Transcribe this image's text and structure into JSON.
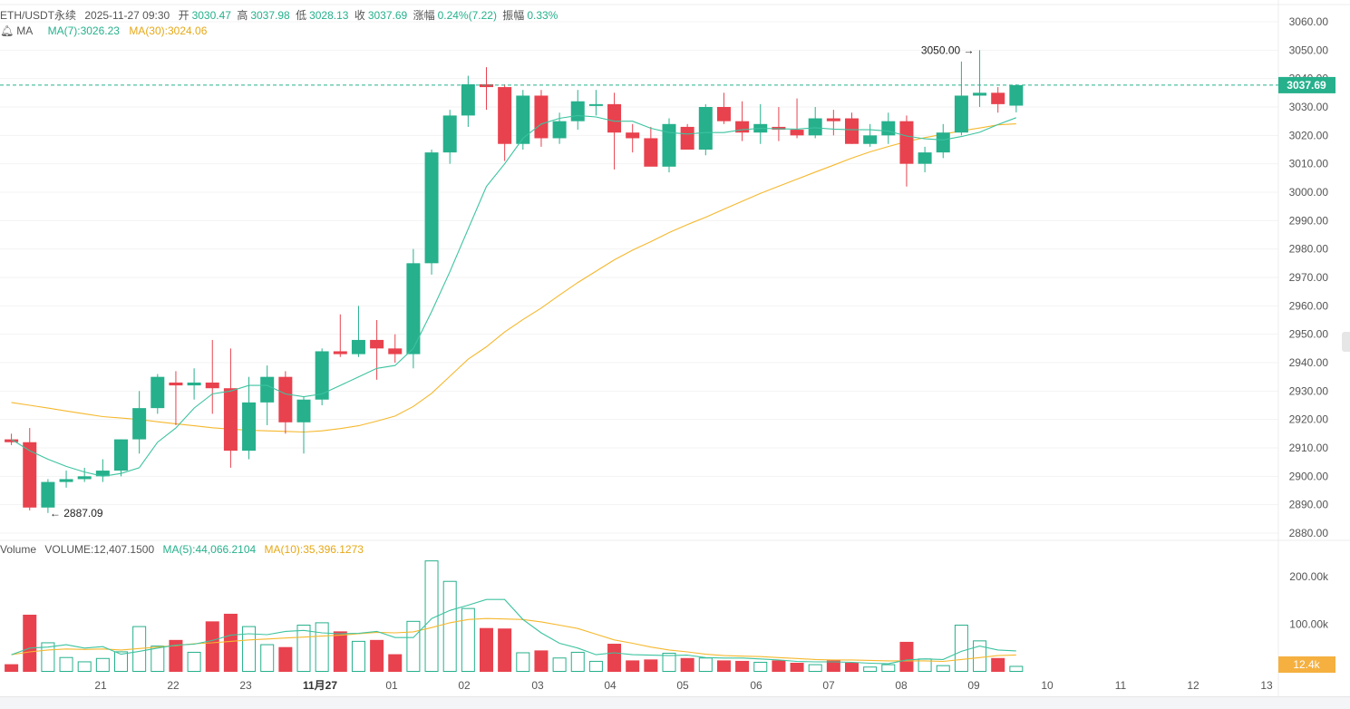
{
  "header": {
    "symbol": "ETH/USDT永续",
    "datetime": "2025-11-27 09:30",
    "open_label": "开",
    "open": "3030.47",
    "high_label": "高",
    "high": "3037.98",
    "low_label": "低",
    "low": "3028.13",
    "close_label": "收",
    "close": "3037.69",
    "change_label": "涨幅",
    "change": "0.24%(7.22)",
    "amp_label": "振幅",
    "amp": "0.33%"
  },
  "ma_legend": {
    "label": "MA",
    "ma7": "MA(7):3026.23",
    "ma30": "MA(30):3024.06"
  },
  "volume_legend": {
    "label": "Volume",
    "volume": "VOLUME:12,407.1500",
    "ma5": "MA(5):44,066.2104",
    "ma10": "MA(10):35,396.1273"
  },
  "colors": {
    "up": "#26b08c",
    "down": "#e8424e",
    "ma7": "#3cc3a0",
    "ma30": "#f5b82e",
    "price_tag": "#26b08c",
    "volume_tag": "#f5b040"
  },
  "chart_data": [
    {
      "type": "candlestick",
      "title": "ETH/USDT永续",
      "x_tick_labels": [
        "21",
        "22",
        "23",
        "11月27",
        "01",
        "02",
        "03",
        "04",
        "05",
        "06",
        "07",
        "08",
        "09",
        "10",
        "11",
        "12",
        "13"
      ],
      "y_tick_labels": [
        "3060.00",
        "3050.00",
        "3040.00",
        "3030.00",
        "3020.00",
        "3010.00",
        "3000.00",
        "2990.00",
        "2980.00",
        "2970.00",
        "2960.00",
        "2950.00",
        "2940.00",
        "2930.00",
        "2920.00",
        "2910.00",
        "2900.00",
        "2890.00",
        "2880.00"
      ],
      "ylim": [
        2877,
        3061
      ],
      "current_price": "3037.69",
      "annotations": {
        "max": "3050.00",
        "min": "2887.09"
      },
      "candles": [
        [
          2913,
          2915,
          2911,
          2912
        ],
        [
          2912,
          2917,
          2888,
          2889
        ],
        [
          2889,
          2899,
          2887.09,
          2898
        ],
        [
          2898,
          2902,
          2896,
          2899
        ],
        [
          2899,
          2903,
          2898,
          2900
        ],
        [
          2900,
          2906,
          2898,
          2902
        ],
        [
          2902,
          2913,
          2900,
          2913
        ],
        [
          2913,
          2930,
          2908,
          2924
        ],
        [
          2924,
          2936,
          2922,
          2935
        ],
        [
          2933,
          2937,
          2918,
          2932
        ],
        [
          2932,
          2938,
          2927,
          2933
        ],
        [
          2933,
          2948,
          2922,
          2931
        ],
        [
          2931,
          2945,
          2903,
          2909
        ],
        [
          2909,
          2935,
          2906,
          2926
        ],
        [
          2926,
          2939,
          2918,
          2935
        ],
        [
          2935,
          2937,
          2915,
          2919
        ],
        [
          2919,
          2928,
          2908,
          2927
        ],
        [
          2927,
          2945,
          2925,
          2944
        ],
        [
          2944,
          2957,
          2942,
          2943
        ],
        [
          2943,
          2960,
          2942,
          2948
        ],
        [
          2948,
          2955,
          2934,
          2945
        ],
        [
          2945,
          2950,
          2940,
          2943
        ],
        [
          2943,
          2980,
          2938,
          2975
        ],
        [
          2975,
          3015,
          2971,
          3014
        ],
        [
          3014,
          3029,
          3010,
          3027
        ],
        [
          3027,
          3041,
          3023,
          3038
        ],
        [
          3038,
          3044,
          3029,
          3037
        ],
        [
          3037,
          3038,
          3011,
          3017
        ],
        [
          3017,
          3036,
          3015,
          3034
        ],
        [
          3034,
          3036,
          3016,
          3019
        ],
        [
          3019,
          3028,
          3017,
          3025
        ],
        [
          3025,
          3036,
          3022,
          3032
        ],
        [
          3031,
          3036,
          3027,
          3031
        ],
        [
          3031,
          3035,
          3008,
          3021
        ],
        [
          3021,
          3024,
          3014,
          3019
        ],
        [
          3019,
          3023,
          3010,
          3009
        ],
        [
          3009,
          3026,
          3007,
          3024
        ],
        [
          3023,
          3024,
          3016,
          3015
        ],
        [
          3015,
          3031,
          3013,
          3030
        ],
        [
          3030,
          3035,
          3024,
          3025
        ],
        [
          3025,
          3032,
          3018,
          3021
        ],
        [
          3021,
          3031,
          3017,
          3024
        ],
        [
          3023,
          3030,
          3018,
          3022
        ],
        [
          3022,
          3033,
          3019,
          3020
        ],
        [
          3020,
          3030,
          3019,
          3026
        ],
        [
          3026,
          3029,
          3020,
          3025
        ],
        [
          3026,
          3028,
          3017,
          3017
        ],
        [
          3017,
          3024,
          3016,
          3020
        ],
        [
          3020,
          3028,
          3017,
          3025
        ],
        [
          3025,
          3027,
          3002,
          3010
        ],
        [
          3010,
          3016,
          3007,
          3014
        ],
        [
          3014,
          3024,
          3012,
          3021
        ],
        [
          3021,
          3046,
          3020,
          3034
        ],
        [
          3034,
          3050,
          3030,
          3035
        ],
        [
          3035,
          3037,
          3028,
          3031
        ],
        [
          3030.47,
          3037.98,
          3028.13,
          3037.69
        ]
      ],
      "ma7": [
        2913,
        2909,
        2906,
        2903.5,
        2901.5,
        2900,
        2901,
        2903,
        2912,
        2917,
        2924,
        2929,
        2930,
        2932,
        2932,
        2929,
        2928,
        2929,
        2932,
        2935,
        2938,
        2939,
        2945,
        2958,
        2972,
        2987,
        3002,
        3010,
        3019,
        3024,
        3026,
        3027,
        3026.5,
        3025,
        3025,
        3022.5,
        3021,
        3020.5,
        3021,
        3021,
        3022,
        3022.5,
        3022.3,
        3022.2,
        3022.7,
        3022.2,
        3022,
        3022,
        3021.5,
        3019.8,
        3018.8,
        3018.4,
        3019.6,
        3021.1,
        3023.8,
        3026.23
      ],
      "ma30": [
        2926,
        2925,
        2924,
        2923,
        2922,
        2921,
        2920.5,
        2920,
        2919.2,
        2918.5,
        2917.8,
        2917.1,
        2916.6,
        2916.2,
        2916,
        2915.8,
        2915.6,
        2916,
        2916.8,
        2917.8,
        2919.4,
        2921.2,
        2924.6,
        2929.2,
        2935.2,
        2941.2,
        2945.6,
        2950.8,
        2955.2,
        2959.2,
        2963.8,
        2968.2,
        2972.2,
        2976.2,
        2979.6,
        2982.6,
        2985.8,
        2988.6,
        2991.2,
        2994,
        2996.8,
        2999.6,
        3002.1,
        3004.6,
        3007.1,
        3009.5,
        3012,
        3014.2,
        3016.1,
        3017.8,
        3019.2,
        3020.4,
        3021.6,
        3022.6,
        3023.7,
        3024.06
      ]
    },
    {
      "type": "bar",
      "title": "Volume",
      "y_tick_labels": [
        "200.00k",
        "100.00k"
      ],
      "ylim": [
        0,
        240
      ],
      "current_volume": "12.4k",
      "values": [
        16,
        120,
        62,
        31,
        22,
        29,
        43,
        96,
        55,
        67,
        42,
        106,
        122,
        96,
        58,
        52,
        99,
        104,
        85,
        65,
        67,
        37,
        107,
        234,
        191,
        134,
        92,
        91,
        41,
        45,
        30,
        42,
        23,
        59,
        24,
        26,
        40,
        29,
        30,
        24,
        23,
        21,
        24,
        19,
        16,
        24,
        19,
        11,
        16,
        63,
        28,
        14,
        99,
        66,
        29,
        12.4
      ],
      "ma5": [
        36,
        50,
        52,
        57,
        50,
        53,
        37,
        43,
        50,
        56,
        58,
        66,
        77,
        80,
        78,
        85,
        87,
        82,
        80,
        81,
        85,
        72,
        72,
        112,
        129,
        140,
        152,
        152,
        110,
        82,
        60,
        50,
        36,
        40,
        36,
        35,
        34,
        35,
        30,
        29,
        29,
        27,
        25,
        22,
        21,
        21,
        20,
        18,
        17,
        25,
        27,
        26,
        43,
        54,
        46,
        44.07
      ],
      "ma10": [
        36,
        42,
        46,
        48,
        47,
        48,
        46,
        49,
        52,
        55,
        59,
        61,
        64,
        67,
        69,
        71,
        73,
        75,
        77,
        80,
        83,
        82,
        84,
        93,
        103,
        110,
        112,
        111,
        110,
        105,
        98,
        91,
        79,
        67,
        60,
        52,
        46,
        42,
        37,
        34,
        33,
        32,
        30,
        28,
        26,
        25,
        25,
        24,
        23,
        23,
        23,
        22,
        26,
        30,
        34,
        35.4
      ]
    }
  ]
}
